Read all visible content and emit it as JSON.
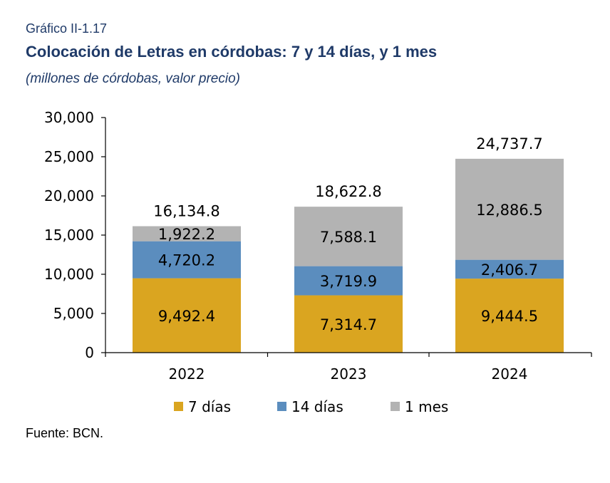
{
  "figure_label": "Gráfico II-1.17",
  "source": "Fuente: BCN.",
  "chart_data": {
    "type": "bar",
    "stacked": true,
    "title": "Colocación de Letras en córdobas: 7 y 14 días, y 1 mes",
    "subtitle": "(millones de córdobas, valor precio)",
    "categories": [
      "2022",
      "2023",
      "2024"
    ],
    "series": [
      {
        "name": "7 días",
        "values": [
          9492.4,
          7314.7,
          9444.5
        ],
        "color": "#DAA520",
        "labels": [
          "9,492.4",
          "7,314.7",
          "9,444.5"
        ]
      },
      {
        "name": "14 días",
        "values": [
          4720.2,
          3719.9,
          2406.7
        ],
        "color": "#5B8DBE",
        "labels": [
          "4,720.2",
          "3,719.9",
          "2,406.7"
        ]
      },
      {
        "name": "1 mes",
        "values": [
          1922.2,
          7588.1,
          12886.5
        ],
        "color": "#B3B3B3",
        "labels": [
          "1,922.2",
          "7,588.1",
          "12,886.5"
        ]
      }
    ],
    "totals": [
      16134.8,
      18622.8,
      24737.7
    ],
    "total_labels": [
      "16,134.8",
      "18,622.8",
      "24,737.7"
    ],
    "ylim": [
      0,
      30000
    ],
    "yticks": [
      0,
      5000,
      10000,
      15000,
      20000,
      25000,
      30000
    ],
    "ytick_labels": [
      "0",
      "5,000",
      "10,000",
      "15,000",
      "20,000",
      "25,000",
      "30,000"
    ],
    "xlabel": "",
    "ylabel": "",
    "grid": false,
    "legend_position": "bottom"
  }
}
